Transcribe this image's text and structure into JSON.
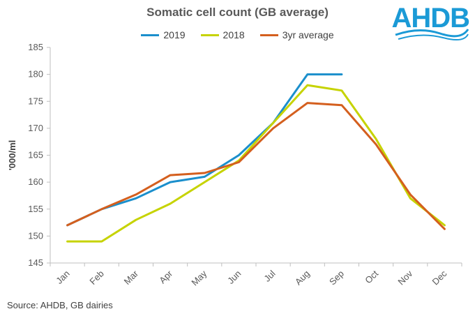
{
  "chart_data": {
    "type": "line",
    "title": "Somatic cell count (GB average)",
    "ylabel": "'000/ml",
    "xlabel": "",
    "categories": [
      "Jan",
      "Feb",
      "Mar",
      "Apr",
      "May",
      "Jun",
      "Jul",
      "Aug",
      "Sep",
      "Oct",
      "Nov",
      "Dec"
    ],
    "ylim": [
      145,
      185
    ],
    "yticks": [
      145,
      150,
      155,
      160,
      165,
      170,
      175,
      180,
      185
    ],
    "grid": false,
    "legend_position": "top-center",
    "series": [
      {
        "name": "2019",
        "color": "#1b8fcc",
        "values": [
          152,
          155,
          157,
          160,
          161,
          165,
          171,
          180,
          180,
          null,
          null,
          null
        ]
      },
      {
        "name": "2018",
        "color": "#c6d300",
        "values": [
          149,
          149,
          153,
          156,
          160,
          164,
          171,
          178,
          177,
          168,
          157,
          152
        ]
      },
      {
        "name": "3yr average",
        "color": "#d45f1e",
        "values": [
          152,
          155,
          157.7,
          161.3,
          161.7,
          163.7,
          170,
          174.7,
          174.3,
          167,
          157.7,
          151.3
        ]
      }
    ]
  },
  "source": "Source: AHDB, GB dairies",
  "logo": {
    "text": "AHDB"
  }
}
